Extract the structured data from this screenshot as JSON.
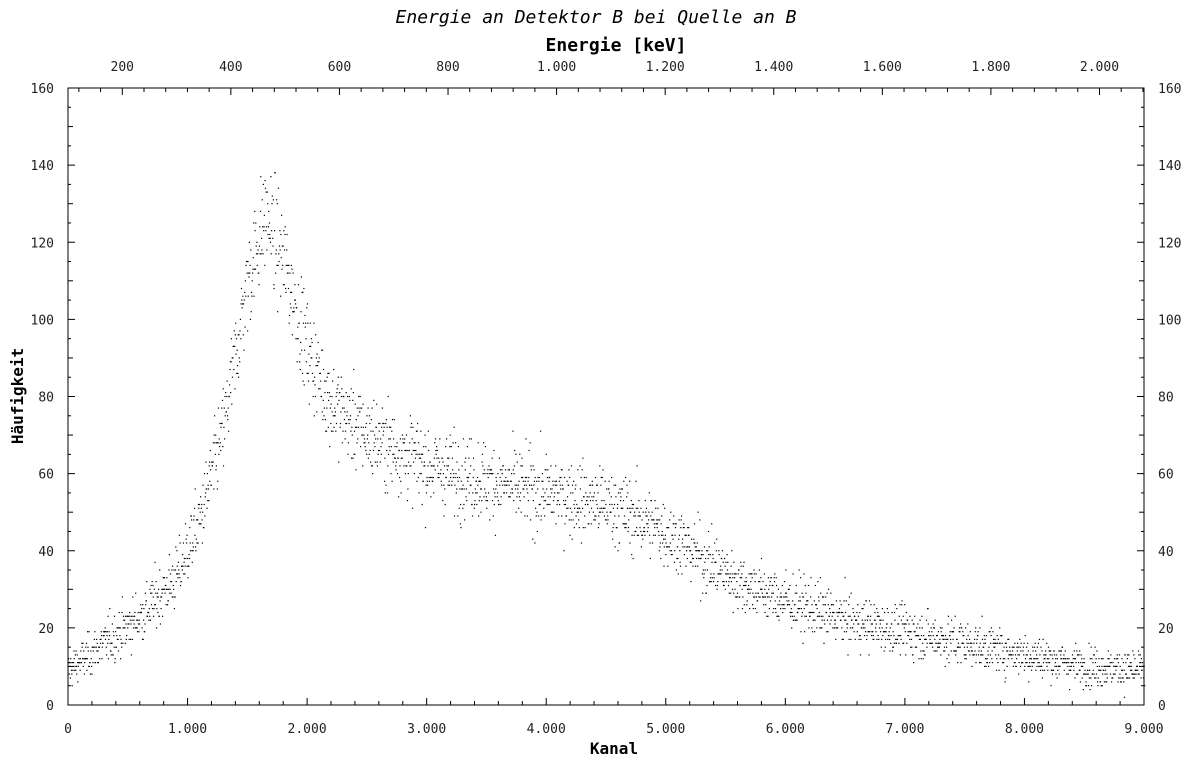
{
  "chart_data": {
    "type": "scatter",
    "title": "Energie an Detektor B bei Quelle an B",
    "xlabel": "Kanal",
    "x2label": "Energie [keV]",
    "ylabel": "Häufigkeit",
    "xlim": [
      0,
      9000
    ],
    "ylim": [
      0,
      160
    ],
    "x2lim": [
      100,
      2082
    ],
    "x_ticks": [
      {
        "v": 0,
        "label": "0"
      },
      {
        "v": 1000,
        "label": "1.000"
      },
      {
        "v": 2000,
        "label": "2.000"
      },
      {
        "v": 3000,
        "label": "3.000"
      },
      {
        "v": 4000,
        "label": "4.000"
      },
      {
        "v": 5000,
        "label": "5.000"
      },
      {
        "v": 6000,
        "label": "6.000"
      },
      {
        "v": 7000,
        "label": "7.000"
      },
      {
        "v": 8000,
        "label": "8.000"
      },
      {
        "v": 9000,
        "label": "9.000"
      }
    ],
    "x2_ticks": [
      {
        "v": 200,
        "label": "200"
      },
      {
        "v": 400,
        "label": "400"
      },
      {
        "v": 600,
        "label": "600"
      },
      {
        "v": 800,
        "label": "800"
      },
      {
        "v": 1000,
        "label": "1.000"
      },
      {
        "v": 1200,
        "label": "1.200"
      },
      {
        "v": 1400,
        "label": "1.400"
      },
      {
        "v": 1600,
        "label": "1.600"
      },
      {
        "v": 1800,
        "label": "1.800"
      },
      {
        "v": 2000,
        "label": "2.000"
      }
    ],
    "y_ticks": [
      {
        "v": 0,
        "label": "0"
      },
      {
        "v": 20,
        "label": "20"
      },
      {
        "v": 40,
        "label": "40"
      },
      {
        "v": 60,
        "label": "60"
      },
      {
        "v": 80,
        "label": "80"
      },
      {
        "v": 100,
        "label": "100"
      },
      {
        "v": 120,
        "label": "120"
      },
      {
        "v": 140,
        "label": "140"
      },
      {
        "v": 160,
        "label": "160"
      }
    ],
    "grid": false,
    "marker_color": "#000000",
    "envelope": {
      "x": [
        0,
        300,
        600,
        900,
        1100,
        1300,
        1500,
        1650,
        1800,
        2000,
        2200,
        2500,
        3000,
        3500,
        4000,
        4500,
        5000,
        5300,
        5600,
        6000,
        6500,
        7000,
        7500,
        8000,
        8500,
        9000
      ],
      "y": [
        9,
        16,
        23,
        33,
        48,
        72,
        110,
        127,
        115,
        92,
        78,
        70,
        62,
        58,
        55,
        52,
        45,
        38,
        32,
        27,
        22,
        19,
        16,
        13,
        10,
        9
      ]
    },
    "spread": 6
  }
}
